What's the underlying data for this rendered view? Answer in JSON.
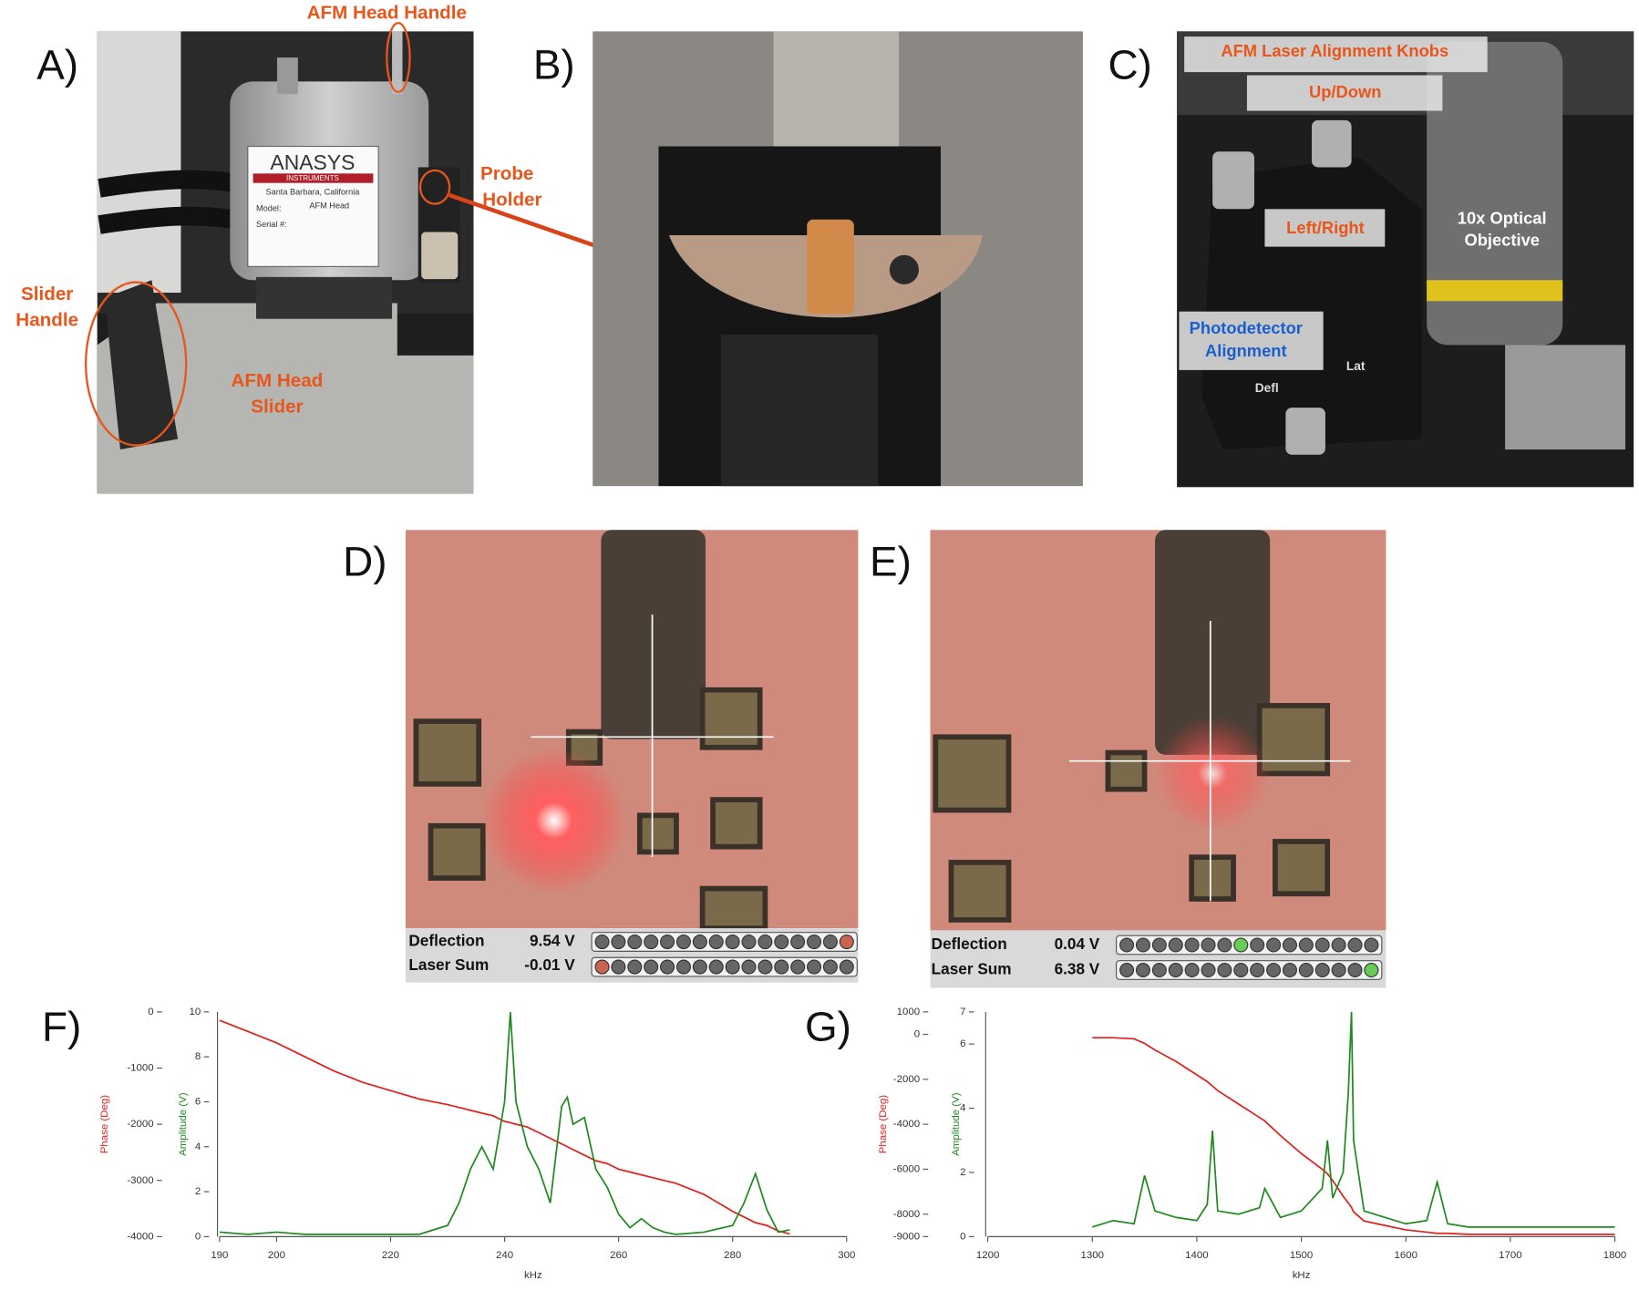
{
  "panels": {
    "A": {
      "label": "A)",
      "annotations": [
        "AFM Head Handle",
        "Probe",
        "Holder",
        "Slider",
        "Handle",
        "AFM Head",
        "Slider"
      ],
      "head_plate": [
        "ANASYS",
        "INSTRUMENTS",
        "Santa Barbara, California",
        "Model:",
        "AFM Head",
        "Serial #:"
      ]
    },
    "B": {
      "label": "B)"
    },
    "C": {
      "label": "C)",
      "annotations": [
        "AFM Laser Alignment Knobs",
        "Up/Down",
        "Left/Right",
        "10x Optical",
        "Objective",
        "Photodetector",
        "Alignment",
        "Defl",
        "Lat"
      ]
    },
    "D": {
      "label": "D)",
      "readout": [
        [
          "Deflection",
          "9.54 V"
        ],
        [
          "Laser Sum",
          "-0.01 V"
        ]
      ]
    },
    "E": {
      "label": "E)",
      "readout": [
        [
          "Deflection",
          "0.04 V"
        ],
        [
          "Laser Sum",
          "6.38 V"
        ]
      ]
    },
    "F": {
      "label": "F)"
    },
    "G": {
      "label": "G)"
    }
  },
  "chart_data": [
    {
      "type": "line",
      "x_label": "kHz",
      "y_label": "Phase (Deg)",
      "y2_label": "Amplitude (V)",
      "x": [
        190,
        195,
        200,
        205,
        210,
        215,
        220,
        225,
        230,
        232,
        234,
        236,
        238,
        240,
        241,
        242,
        244,
        246,
        248,
        250,
        251,
        252,
        254,
        256,
        258,
        260,
        262,
        264,
        266,
        268,
        270,
        275,
        280,
        282,
        284,
        286,
        288,
        290
      ],
      "series": [
        {
          "color": "#e0201c",
          "axis": "y",
          "values": [
            -150,
            -350,
            -550,
            -800,
            -1050,
            -1250,
            -1400,
            -1550,
            -1650,
            -1700,
            -1750,
            -1800,
            -1850,
            -1950,
            -1970,
            -2000,
            -2050,
            -2150,
            -2250,
            -2350,
            -2400,
            -2450,
            -2550,
            -2650,
            -2700,
            -2800,
            -2850,
            -2900,
            -2950,
            -3000,
            -3050,
            -3250,
            -3550,
            -3650,
            -3750,
            -3800,
            -3900,
            -3950
          ]
        },
        {
          "color": "#1f8a1f",
          "axis": "y2",
          "values": [
            0.2,
            0.1,
            0.2,
            0.1,
            0.1,
            0.1,
            0.1,
            0.1,
            0.5,
            1.5,
            3,
            4,
            3,
            6,
            10,
            6,
            4,
            3,
            1.5,
            5.8,
            6.2,
            5,
            5.3,
            3,
            2.2,
            1,
            0.4,
            0.8,
            0.4,
            0.2,
            0.1,
            0.2,
            0.5,
            1.5,
            2.8,
            1.2,
            0.2,
            0.3
          ]
        }
      ],
      "xlim": [
        190,
        300
      ],
      "xticks": [
        190,
        200,
        220,
        240,
        260,
        280,
        300
      ],
      "ylim": [
        -4000,
        0
      ],
      "yticks": [
        0,
        -1000,
        -2000,
        -3000,
        -4000
      ],
      "y2lim": [
        0,
        10
      ],
      "y2ticks": [
        0,
        2,
        4,
        6,
        8,
        10
      ]
    },
    {
      "type": "line",
      "x_label": "kHz",
      "y_label": "Phase (Deg)",
      "y2_label": "Amplitude (V)",
      "x": [
        1300,
        1320,
        1340,
        1350,
        1360,
        1380,
        1400,
        1410,
        1415,
        1420,
        1440,
        1460,
        1465,
        1480,
        1500,
        1520,
        1525,
        1530,
        1540,
        1545,
        1548,
        1550,
        1560,
        1580,
        1600,
        1620,
        1630,
        1640,
        1660,
        1700,
        1750,
        1800
      ],
      "series": [
        {
          "color": "#e0201c",
          "axis": "y",
          "values": [
            -150,
            -150,
            -200,
            -400,
            -700,
            -1200,
            -1800,
            -2100,
            -2300,
            -2500,
            -3100,
            -3700,
            -3850,
            -4500,
            -5300,
            -6000,
            -6200,
            -6500,
            -7200,
            -7500,
            -7700,
            -7900,
            -8300,
            -8500,
            -8700,
            -8800,
            -8850,
            -8850,
            -8900,
            -8900,
            -8900,
            -8900
          ]
        },
        {
          "color": "#1f8a1f",
          "axis": "y2",
          "values": [
            0.3,
            0.5,
            0.4,
            1.9,
            0.8,
            0.6,
            0.5,
            1,
            3.3,
            0.8,
            0.7,
            0.9,
            1.5,
            0.6,
            0.8,
            1.5,
            3,
            1.2,
            2,
            4.5,
            7,
            3,
            0.8,
            0.6,
            0.4,
            0.5,
            1.7,
            0.4,
            0.3,
            0.3,
            0.3,
            0.3
          ]
        }
      ],
      "xlim": [
        1200,
        1800
      ],
      "xticks": [
        1200,
        1300,
        1400,
        1500,
        1600,
        1700,
        1800
      ],
      "ylim": [
        -9000,
        1000
      ],
      "yticks": [
        1000,
        0,
        -2000,
        -4000,
        -6000,
        -8000,
        -9000
      ],
      "y2lim": [
        0,
        7
      ],
      "y2ticks": [
        0,
        2,
        4,
        6,
        7
      ]
    }
  ]
}
